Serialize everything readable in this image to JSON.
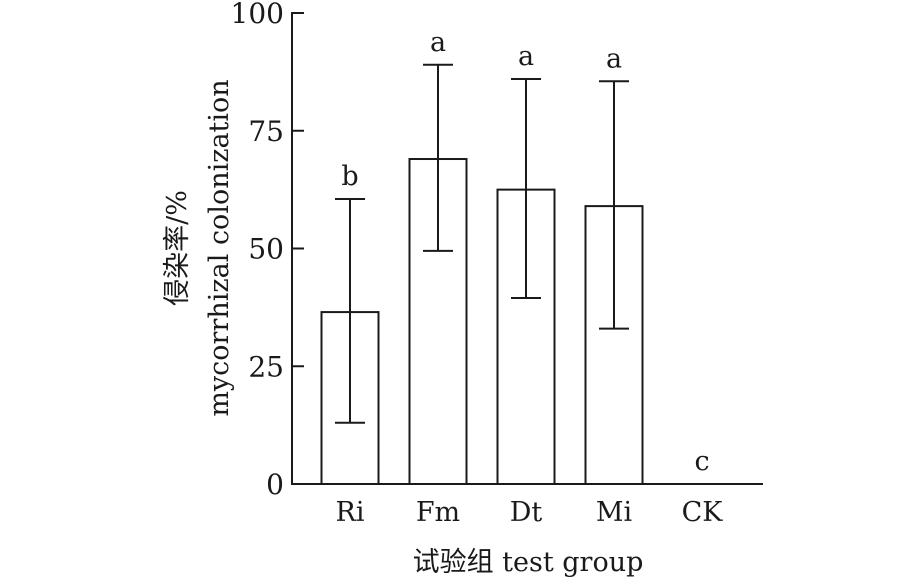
{
  "chart_data": {
    "type": "bar",
    "categories": [
      "Ri",
      "Fm",
      "Dt",
      "Mi",
      "CK"
    ],
    "values": [
      36.5,
      69,
      62.5,
      59,
      0
    ],
    "error_low": [
      13,
      49.5,
      39.5,
      33,
      0
    ],
    "error_high": [
      60.5,
      89,
      86,
      85.5,
      0
    ],
    "significance": [
      "b",
      "a",
      "a",
      "a",
      "c"
    ],
    "ylim": [
      0,
      100
    ],
    "yticks": [
      "0",
      "25",
      "50",
      "75",
      "100"
    ],
    "ylabel_cn": "侵染率/%",
    "ylabel_en": "mycorrhizal colonization",
    "xlabel": "试验组 test group",
    "grid": false
  }
}
